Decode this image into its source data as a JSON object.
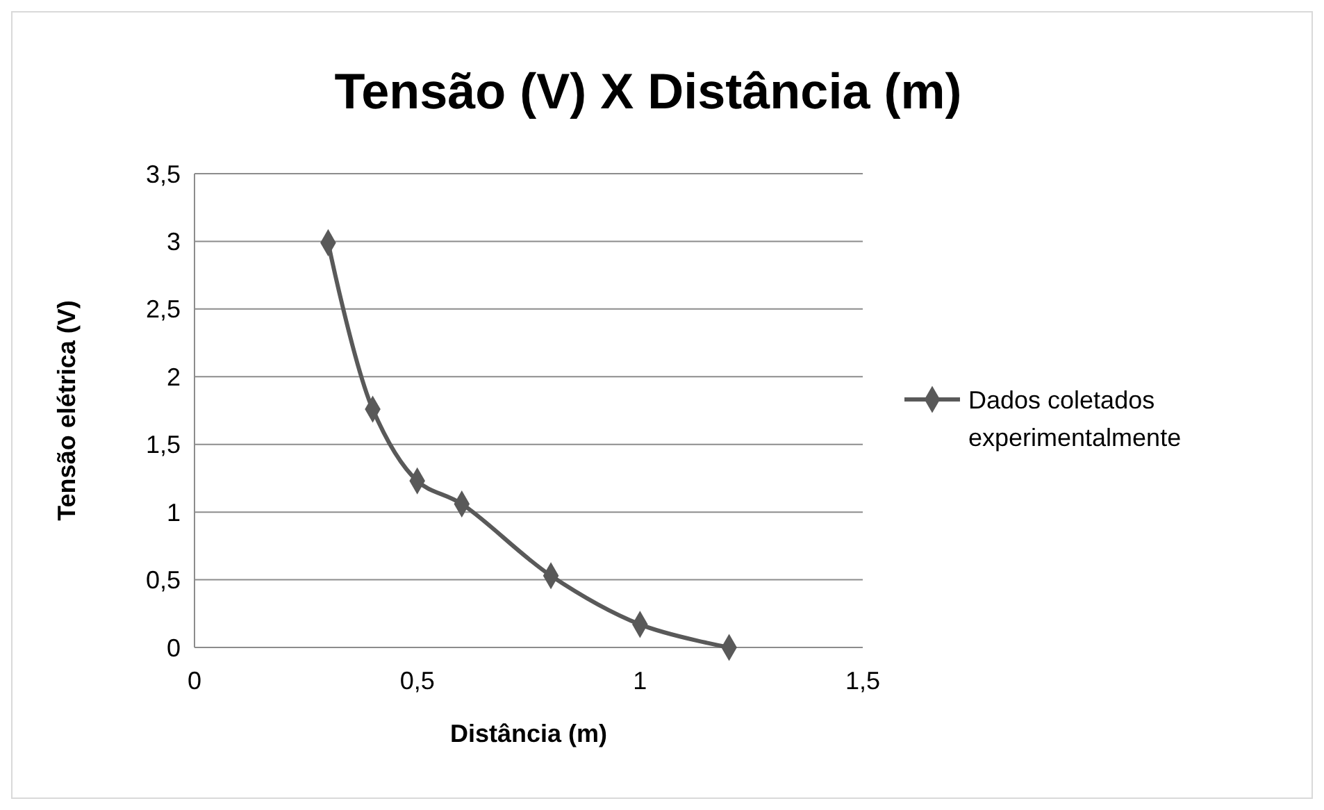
{
  "chart_data": {
    "type": "line",
    "title": "Tensão (V) X Distância (m)",
    "xlabel": "Distância (m)",
    "ylabel": "Tensão elétrica (V)",
    "x": [
      0.3,
      0.4,
      0.5,
      0.6,
      0.8,
      1.0,
      1.2
    ],
    "series": [
      {
        "name": "Dados coletados experimentalmente",
        "color": "#595959",
        "values": [
          2.99,
          1.76,
          1.23,
          1.06,
          0.53,
          0.17,
          0
        ]
      }
    ],
    "xlim": [
      0,
      1.5
    ],
    "xticks": [
      0,
      {
        "value": 0.5,
        "label": "0,5"
      },
      1,
      {
        "value": 1.5,
        "label": "1,5"
      }
    ],
    "ylim": [
      0,
      3.5
    ],
    "yticks": [
      0,
      {
        "value": 0.5,
        "label": "0,5"
      },
      1,
      {
        "value": 1.5,
        "label": "1,5"
      },
      2,
      {
        "value": 2.5,
        "label": "2,5"
      },
      3,
      {
        "value": 3.5,
        "label": "3,5"
      }
    ],
    "grid": "y",
    "legend": "right",
    "marker": "diamond",
    "line_style": "solid"
  }
}
